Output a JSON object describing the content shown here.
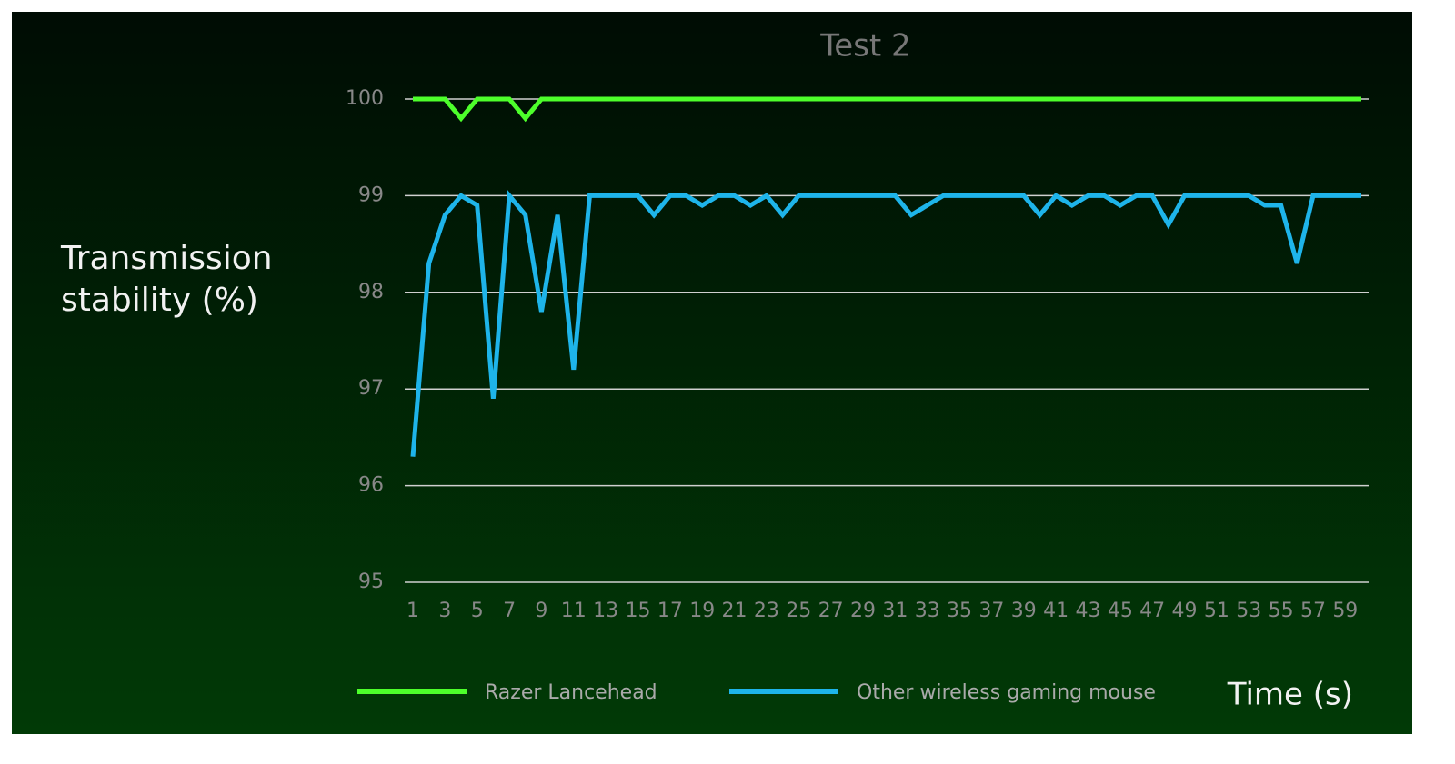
{
  "chart_data": {
    "type": "line",
    "title": "Test 2",
    "y_label": "Transmission stability (%)",
    "x_label": "Time (s)",
    "x": [
      1,
      2,
      3,
      4,
      5,
      6,
      7,
      8,
      9,
      10,
      11,
      12,
      13,
      14,
      15,
      16,
      17,
      18,
      19,
      20,
      21,
      22,
      23,
      24,
      25,
      26,
      27,
      28,
      29,
      30,
      31,
      32,
      33,
      34,
      35,
      36,
      37,
      38,
      39,
      40,
      41,
      42,
      43,
      44,
      45,
      46,
      47,
      48,
      49,
      50,
      51,
      52,
      53,
      54,
      55,
      56,
      57,
      58,
      59,
      60
    ],
    "xlim": [
      1,
      60
    ],
    "xticks": [
      1,
      3,
      5,
      7,
      9,
      11,
      13,
      15,
      17,
      19,
      21,
      23,
      25,
      27,
      29,
      31,
      33,
      35,
      37,
      39,
      41,
      43,
      45,
      47,
      49,
      51,
      53,
      55,
      57,
      59
    ],
    "ylim": [
      95,
      100
    ],
    "yticks": [
      95,
      96,
      97,
      98,
      99,
      100
    ],
    "grid": true,
    "series": [
      {
        "name": "Razer Lancehead",
        "color": "#4dff2b",
        "values": [
          100,
          100,
          100,
          99.8,
          100,
          100,
          100,
          99.8,
          100,
          100,
          100,
          100,
          100,
          100,
          100,
          100,
          100,
          100,
          100,
          100,
          100,
          100,
          100,
          100,
          100,
          100,
          100,
          100,
          100,
          100,
          100,
          100,
          100,
          100,
          100,
          100,
          100,
          100,
          100,
          100,
          100,
          100,
          100,
          100,
          100,
          100,
          100,
          100,
          100,
          100,
          100,
          100,
          100,
          100,
          100,
          100,
          100,
          100,
          100,
          100
        ]
      },
      {
        "name": "Other wireless gaming mouse",
        "color": "#1eb4ea",
        "values": [
          96.3,
          98.3,
          98.8,
          99,
          98.9,
          96.9,
          99,
          98.8,
          97.8,
          98.8,
          97.2,
          99,
          99,
          99,
          99,
          98.8,
          99,
          99,
          98.9,
          99,
          99,
          98.9,
          99,
          98.8,
          99,
          99,
          99,
          99,
          99,
          99,
          99,
          98.8,
          98.9,
          99,
          99,
          99,
          99,
          99,
          99,
          98.8,
          99,
          98.9,
          99,
          99,
          98.9,
          99,
          99,
          98.7,
          99,
          99,
          99,
          99,
          99,
          98.9,
          98.9,
          98.3,
          99,
          99,
          99,
          99
        ]
      }
    ]
  }
}
